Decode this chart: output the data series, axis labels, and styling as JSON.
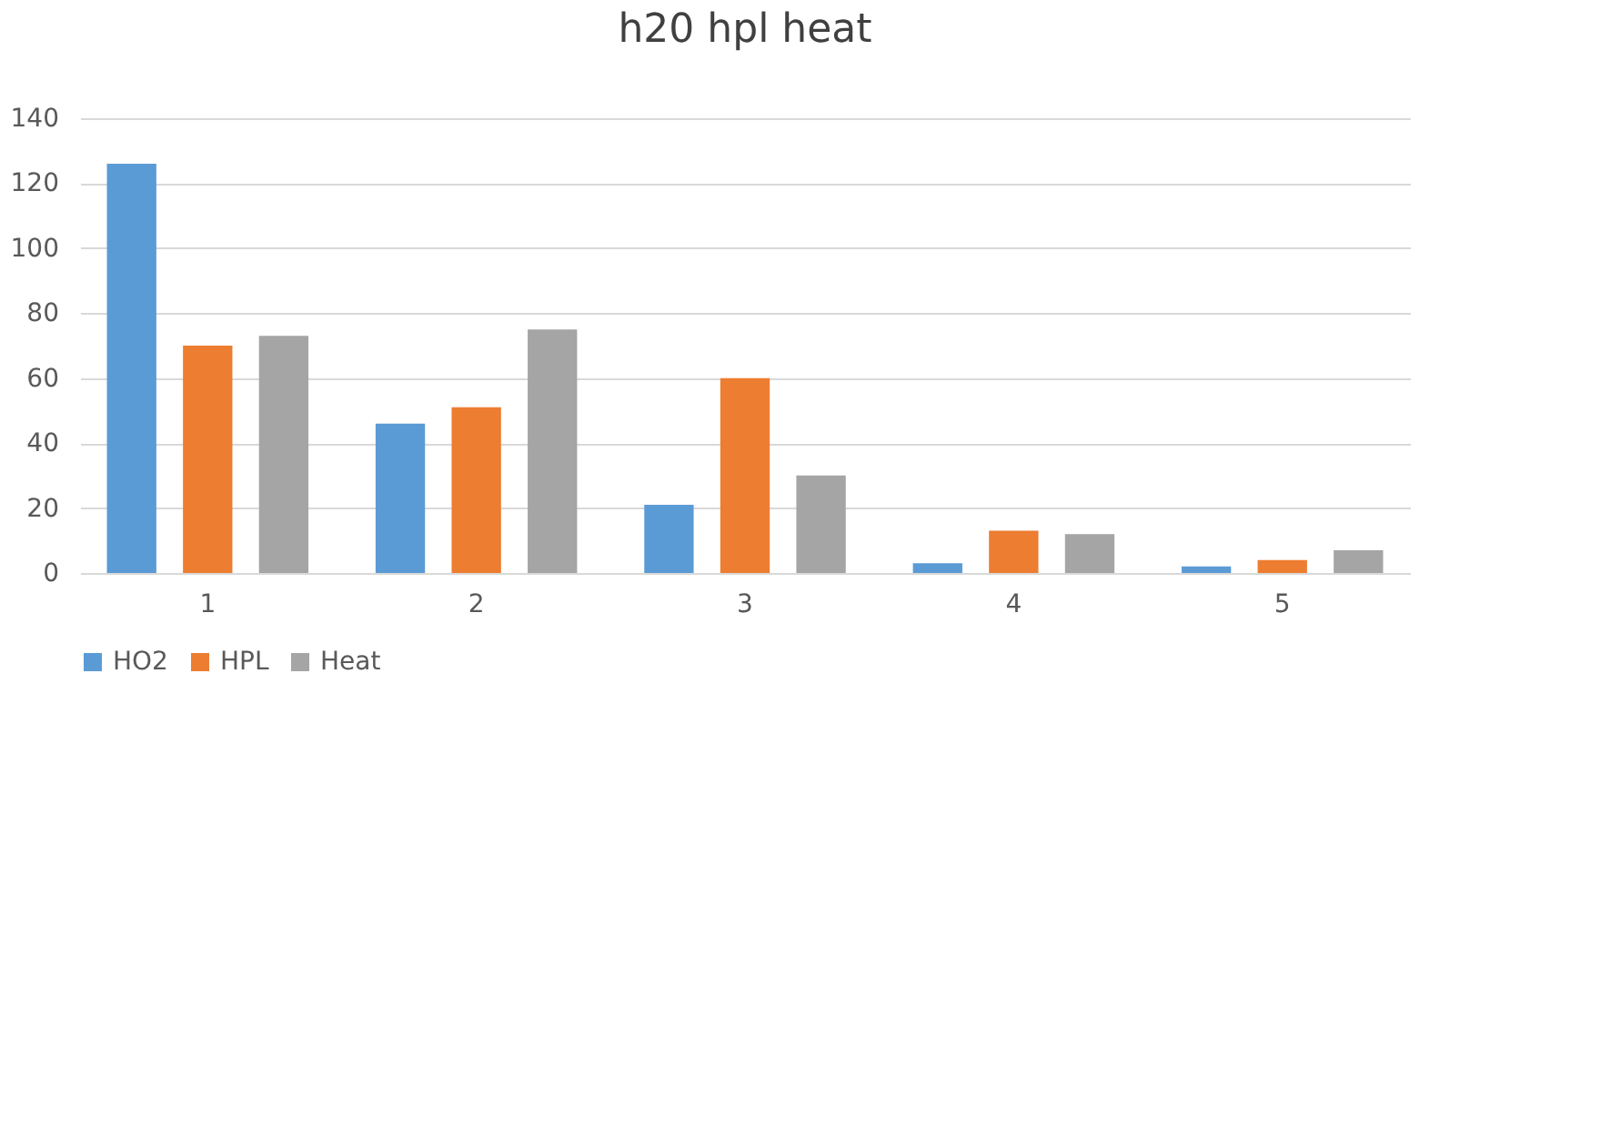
{
  "chart_data": {
    "type": "bar",
    "title": "h20 hpl heat",
    "categories": [
      "1",
      "2",
      "3",
      "4",
      "5"
    ],
    "series": [
      {
        "name": "HO2",
        "color": "#5b9bd5",
        "values": [
          126,
          46,
          21,
          3,
          2
        ]
      },
      {
        "name": "HPL",
        "color": "#ed7d31",
        "values": [
          70,
          51,
          60,
          13,
          4
        ]
      },
      {
        "name": "Heat",
        "color": "#a5a5a5",
        "values": [
          73,
          75,
          30,
          12,
          7
        ]
      }
    ],
    "ylim": [
      0,
      140
    ],
    "yticks": [
      0,
      20,
      40,
      60,
      80,
      100,
      120,
      140
    ],
    "grid": "y",
    "legend": "bottom"
  }
}
